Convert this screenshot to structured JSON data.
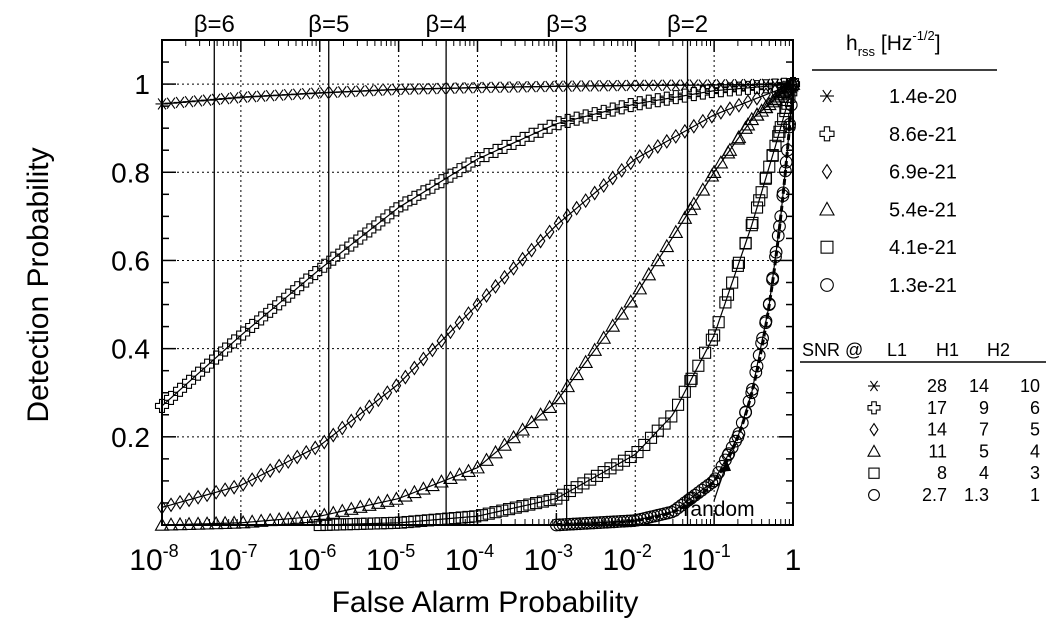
{
  "chart_data": {
    "type": "line",
    "xlabel": "False Alarm Probability",
    "ylabel": "Detection Probability",
    "x_scale": "log",
    "xlim": [
      1e-08,
      1
    ],
    "ylim": [
      0,
      1.1
    ],
    "grid": true,
    "x_ticks": [
      {
        "base": "10",
        "exp": "-8"
      },
      {
        "base": "10",
        "exp": "-7"
      },
      {
        "base": "10",
        "exp": "-6"
      },
      {
        "base": "10",
        "exp": "-5"
      },
      {
        "base": "10",
        "exp": "-4"
      },
      {
        "base": "10",
        "exp": "-3"
      },
      {
        "base": "10",
        "exp": "-2"
      },
      {
        "base": "10",
        "exp": "-1"
      },
      {
        "base": "1",
        "exp": ""
      }
    ],
    "y_ticks": [
      "0.2",
      "0.4",
      "0.6",
      "0.8",
      "1"
    ],
    "beta_lines": [
      {
        "label": "β=6",
        "x": 4.6e-08
      },
      {
        "label": "β=5",
        "x": 1.3e-06
      },
      {
        "label": "β=4",
        "x": 4e-05
      },
      {
        "label": "β=3",
        "x": 0.00135
      },
      {
        "label": "β=2",
        "x": 0.046
      }
    ],
    "annotation": {
      "text": "random",
      "x": 0.15,
      "y": 0.15
    },
    "series": [
      {
        "name": "1.4e-20",
        "marker": "star",
        "x": [
          1e-08,
          1e-07,
          1e-06,
          1e-05,
          0.0001,
          0.001,
          0.01,
          0.1,
          1
        ],
        "y": [
          0.955,
          0.97,
          0.98,
          0.988,
          0.992,
          0.995,
          0.997,
          0.998,
          1.0
        ]
      },
      {
        "name": "8.6e-21",
        "marker": "cross",
        "x": [
          1e-08,
          1e-07,
          1e-06,
          1e-05,
          0.0001,
          0.001,
          0.01,
          0.1,
          1
        ],
        "y": [
          0.27,
          0.43,
          0.58,
          0.72,
          0.83,
          0.91,
          0.955,
          0.985,
          1.0
        ]
      },
      {
        "name": "6.9e-21",
        "marker": "diamond",
        "x": [
          1e-08,
          1e-07,
          1e-06,
          1e-05,
          0.0001,
          0.001,
          0.01,
          0.1,
          1
        ],
        "y": [
          0.04,
          0.09,
          0.18,
          0.32,
          0.5,
          0.68,
          0.83,
          0.93,
          1.0
        ]
      },
      {
        "name": "5.4e-21",
        "marker": "triangle",
        "x": [
          1e-08,
          1e-07,
          1e-06,
          1e-05,
          0.0001,
          0.001,
          0.01,
          0.1,
          0.3,
          1
        ],
        "y": [
          0.0,
          0.005,
          0.02,
          0.06,
          0.13,
          0.28,
          0.52,
          0.8,
          0.92,
          1.0
        ]
      },
      {
        "name": "4.1e-21",
        "marker": "square",
        "x": [
          1e-06,
          1e-05,
          0.0001,
          0.001,
          0.01,
          0.03,
          0.1,
          0.3,
          0.6,
          1
        ],
        "y": [
          0.0,
          0.005,
          0.02,
          0.06,
          0.16,
          0.25,
          0.43,
          0.68,
          0.86,
          1.0
        ]
      },
      {
        "name": "1.3e-21",
        "marker": "circle",
        "x": [
          0.001,
          0.01,
          0.03,
          0.1,
          0.2,
          0.3,
          0.5,
          0.7,
          0.85,
          1
        ],
        "y": [
          0.0,
          0.01,
          0.03,
          0.1,
          0.2,
          0.3,
          0.5,
          0.7,
          0.85,
          1.0
        ]
      }
    ]
  },
  "legend": {
    "title_main": "h",
    "title_sub": "rss",
    "title_unit": " [Hz",
    "title_sup": "-1/2",
    "title_close": "]",
    "entries": [
      "1.4e-20",
      "8.6e-21",
      "6.9e-21",
      "5.4e-21",
      "4.1e-21",
      "1.3e-21"
    ]
  },
  "snr_table": {
    "headers": [
      "SNR @",
      "L1",
      "H1",
      "H2"
    ],
    "rows": [
      {
        "marker": "star",
        "values": [
          "28",
          "14",
          "10"
        ]
      },
      {
        "marker": "cross",
        "values": [
          "17",
          "9",
          "6"
        ]
      },
      {
        "marker": "diamond",
        "values": [
          "14",
          "7",
          "5"
        ]
      },
      {
        "marker": "triangle",
        "values": [
          "11",
          "5",
          "4"
        ]
      },
      {
        "marker": "square",
        "values": [
          "8",
          "4",
          "3"
        ]
      },
      {
        "marker": "circle",
        "values": [
          "2.7",
          "1.3",
          "1"
        ]
      }
    ]
  }
}
